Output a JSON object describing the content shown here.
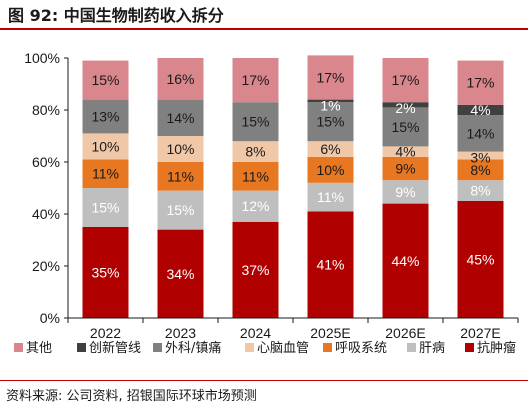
{
  "header": {
    "title": "图 92: 中国生物制药收入拆分"
  },
  "source": "资料来源: 公司资料, 招银国际环球市场预测",
  "chart_data": {
    "type": "bar",
    "stacked": true,
    "categories": [
      "2022",
      "2023",
      "2024",
      "2025E",
      "2026E",
      "2027E"
    ],
    "ylim": [
      0,
      100
    ],
    "yticks": [
      "0%",
      "20%",
      "40%",
      "60%",
      "80%",
      "100%"
    ],
    "legend_position": "bottom",
    "grid": false,
    "series": [
      {
        "name": "抗肿瘤",
        "color": "#b00000",
        "text_color": "#ffffff",
        "values": [
          35,
          34,
          37,
          41,
          44,
          45
        ],
        "labels": [
          "35%",
          "34%",
          "37%",
          "41%",
          "44%",
          "45%"
        ]
      },
      {
        "name": "肝病",
        "color": "#bfbfbf",
        "text_color": "#ffffff",
        "values": [
          15,
          15,
          12,
          11,
          9,
          8
        ],
        "labels": [
          "15%",
          "15%",
          "12%",
          "11%",
          "9%",
          "8%"
        ]
      },
      {
        "name": "呼吸系统",
        "color": "#e87722",
        "text_color": "#1a1a1a",
        "values": [
          11,
          11,
          11,
          10,
          9,
          8
        ],
        "labels": [
          "11%",
          "11%",
          "11%",
          "10%",
          "9%",
          "8%"
        ]
      },
      {
        "name": "心脑血管",
        "color": "#f0c8a8",
        "text_color": "#1a1a1a",
        "values": [
          10,
          10,
          8,
          6,
          4,
          3
        ],
        "labels": [
          "10%",
          "10%",
          "8%",
          "6%",
          "4%",
          "3%"
        ]
      },
      {
        "name": "外科/镇痛",
        "color": "#808080",
        "text_color": "#1a1a1a",
        "values": [
          13,
          14,
          15,
          15,
          15,
          14
        ],
        "labels": [
          "13%",
          "14%",
          "15%",
          "15%",
          "15%",
          "14%"
        ]
      },
      {
        "name": "创新管线",
        "color": "#404040",
        "text_color": "#ffffff",
        "values": [
          0,
          0,
          0,
          1,
          2,
          4
        ],
        "labels": [
          "",
          "",
          "",
          "1%",
          "2%",
          "4%"
        ]
      },
      {
        "name": "其他",
        "color": "#d9868c",
        "text_color": "#1a1a1a",
        "values": [
          15,
          16,
          17,
          17,
          17,
          17
        ],
        "labels": [
          "15%",
          "16%",
          "17%",
          "17%",
          "17%",
          "17%"
        ]
      }
    ]
  }
}
